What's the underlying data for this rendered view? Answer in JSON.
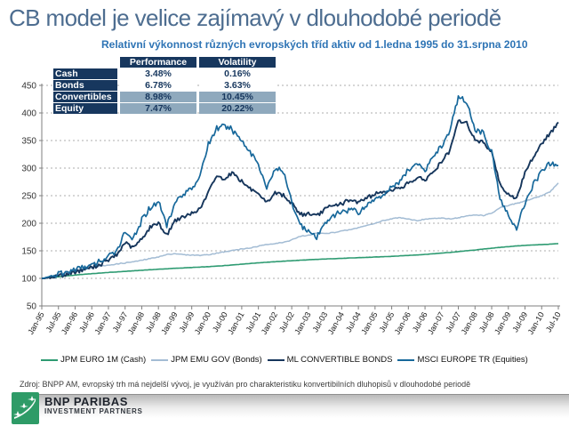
{
  "slide": {
    "title": "CB model je velice zajímavý v dlouhodobé periodě",
    "subtitle": "Relativní výkonnost různých evropských tříd aktiv od 1.ledna 1995 do 31.srpna 2010",
    "source_note": "Zdroj: BNPP AM, evropský trh má nejdelší vývoj, je využíván pro charakteristiku konvertibilních dluhopisů v dlouhodobé periodě",
    "logo": {
      "brand": "BNP PARIBAS",
      "sub_brand": "INVESTMENT PARTNERS",
      "green": "#2E9B67"
    }
  },
  "stats_table": {
    "columns": [
      "Performance",
      "Volatility"
    ],
    "rows": [
      {
        "label": "Cash",
        "performance": "3.48%",
        "volatility": "0.16%",
        "highlight": false
      },
      {
        "label": "Bonds",
        "performance": "6.78%",
        "volatility": "3.63%",
        "highlight": false
      },
      {
        "label": "Convertibles",
        "performance": "8.98%",
        "volatility": "10.45%",
        "highlight": true
      },
      {
        "label": "Equity",
        "performance": "7.47%",
        "volatility": "20.22%",
        "highlight": true
      }
    ]
  },
  "chart_data": {
    "type": "line",
    "title": "",
    "xlabel": "",
    "ylabel": "",
    "ylim": [
      50,
      450
    ],
    "y_ticks": [
      50,
      100,
      150,
      200,
      250,
      300,
      350,
      400,
      450
    ],
    "grid": "dashed-horizontal",
    "legend_position": "bottom",
    "x_tick_labels": [
      "Jan-95",
      "Jul-95",
      "Jan-96",
      "Jul-96",
      "Jan-97",
      "Jul-97",
      "Jan-98",
      "Jul-98",
      "Jan-99",
      "Jul-99",
      "Jan-00",
      "Jul-00",
      "Jan-01",
      "Jul-01",
      "Jan-02",
      "Jul-02",
      "Jan-03",
      "Jul-03",
      "Jan-04",
      "Jul-04",
      "Jan-05",
      "Jul-05",
      "Jan-06",
      "Jul-06",
      "Jan-07",
      "Jul-07",
      "Jan-08",
      "Jul-08",
      "Jan-09",
      "Jul-09",
      "Jan-10",
      "Jul-10"
    ],
    "months_total": 186,
    "anchor_step_months": 3,
    "series": [
      {
        "name": "JPM EURO 1M (Cash)",
        "color": "#2E9B72",
        "width": 1.6,
        "jitter": 0.25,
        "values": [
          100,
          101.5,
          103,
          104.5,
          106,
          107.3,
          108.5,
          109.6,
          110.7,
          111.7,
          112.7,
          113.7,
          114.7,
          115.6,
          116.5,
          117.4,
          118.2,
          119,
          119.7,
          120.4,
          121.2,
          122.2,
          123.3,
          124.5,
          125.8,
          127,
          128.2,
          129.3,
          130.2,
          131.1,
          132,
          132.9,
          133.7,
          134.4,
          135.1,
          135.7,
          136.3,
          136.9,
          137.5,
          138.1,
          138.7,
          139.3,
          140,
          140.8,
          141.6,
          142.5,
          143.5,
          144.6,
          145.8,
          147.1,
          148.5,
          150,
          151.5,
          153.1,
          154.7,
          156.2,
          157.6,
          158.8,
          159.8,
          160.6,
          161.3,
          162,
          163
        ]
      },
      {
        "name": "JPM EMU GOV (Bonds)",
        "color": "#A3BCD4",
        "width": 1.5,
        "jitter": 1.0,
        "values": [
          100,
          103,
          107,
          110,
          113,
          116,
          119,
          122,
          124,
          126,
          128,
          130,
          133,
          136,
          139,
          143,
          145,
          143,
          142,
          142,
          143,
          146,
          148,
          151,
          153,
          155,
          158,
          162,
          163,
          165,
          170,
          176,
          178,
          182,
          181,
          183,
          186,
          188,
          192,
          196,
          200,
          205,
          208,
          210,
          208,
          205,
          207,
          209,
          209,
          208,
          210,
          213,
          215,
          214,
          218,
          228,
          232,
          236,
          240,
          245,
          250,
          257,
          273
        ]
      },
      {
        "name": "ML CONVERTIBLE BONDS",
        "color": "#16365C",
        "width": 1.9,
        "jitter": 4.5,
        "values": [
          100,
          101,
          105,
          107,
          112,
          116,
          120,
          125,
          133,
          142,
          165,
          155,
          172,
          192,
          200,
          179,
          205,
          210,
          218,
          226,
          256,
          286,
          281,
          292,
          276,
          263,
          251,
          236,
          256,
          250,
          236,
          216,
          218,
          213,
          226,
          231,
          236,
          241,
          239,
          246,
          253,
          256,
          261,
          263,
          273,
          281,
          279,
          293,
          311,
          331,
          386,
          381,
          352,
          346,
          331,
          271,
          251,
          246,
          291,
          321,
          346,
          362,
          383
        ]
      },
      {
        "name": "MSCI EUROPE TR (Equities)",
        "color": "#17689B",
        "width": 1.7,
        "jitter": 6.5,
        "values": [
          100,
          102,
          108,
          110,
          116,
          121,
          124,
          130,
          140,
          152,
          185,
          170,
          205,
          228,
          240,
          196,
          240,
          252,
          265,
          285,
          345,
          372,
          375,
          368,
          350,
          330,
          308,
          262,
          300,
          292,
          238,
          198,
          188,
          172,
          202,
          212,
          222,
          226,
          220,
          232,
          246,
          252,
          265,
          277,
          296,
          310,
          294,
          321,
          341,
          368,
          430,
          419,
          371,
          364,
          329,
          244,
          213,
          190,
          236,
          270,
          295,
          308,
          305
        ]
      }
    ]
  }
}
